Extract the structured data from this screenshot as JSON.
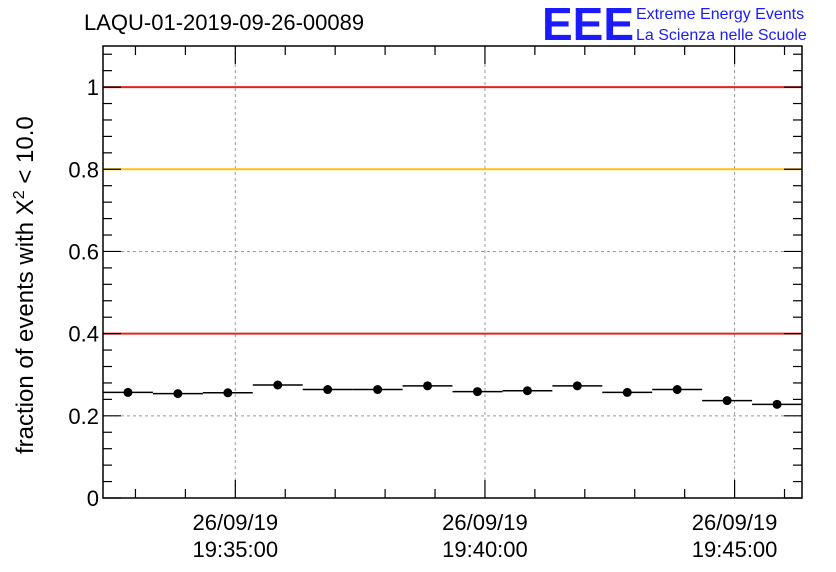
{
  "chart_data": {
    "type": "scatter",
    "title": "LAQU-01-2019-09-26-00089",
    "ylabel_main": "fraction of events with X",
    "ylabel_sup": "2",
    "ylabel_tail": " < 10.0",
    "xlabel": "",
    "ylim": [
      0,
      1.1
    ],
    "yticks": [
      0,
      0.2,
      0.4,
      0.6,
      0.8,
      1
    ],
    "ytick_labels": [
      "0",
      "0.2",
      "0.4",
      "0.6",
      "0.8",
      "1"
    ],
    "xlim_minutes": [
      32.35,
      46.35
    ],
    "xticks": [
      {
        "minute": 35,
        "date": "26/09/19",
        "time": "19:35:00"
      },
      {
        "minute": 40,
        "date": "26/09/19",
        "time": "19:40:00"
      },
      {
        "minute": 45,
        "date": "26/09/19",
        "time": "19:45:00"
      }
    ],
    "grid": true,
    "reference_lines": [
      {
        "y": 1.0,
        "color": "#e8231c"
      },
      {
        "y": 0.8,
        "color": "#ffc20e"
      },
      {
        "y": 0.4,
        "color": "#e8231c"
      }
    ],
    "series": [
      {
        "x_start": [
          32.35,
          33.35,
          34.35,
          35.35,
          36.35,
          37.35,
          38.35,
          39.35,
          40.35,
          41.35,
          42.35,
          43.35,
          44.35,
          45.35
        ],
        "x_end": [
          33.35,
          34.35,
          35.35,
          36.35,
          37.35,
          38.35,
          39.35,
          40.35,
          41.35,
          42.35,
          43.35,
          44.35,
          45.35,
          46.35
        ],
        "y": [
          0.257,
          0.254,
          0.256,
          0.275,
          0.264,
          0.264,
          0.273,
          0.259,
          0.261,
          0.273,
          0.257,
          0.264,
          0.237,
          0.228
        ]
      }
    ]
  },
  "logo": {
    "mark": "EEE",
    "line1": "Extreme Energy Events",
    "line2": "La Scienza nelle Scuole"
  }
}
